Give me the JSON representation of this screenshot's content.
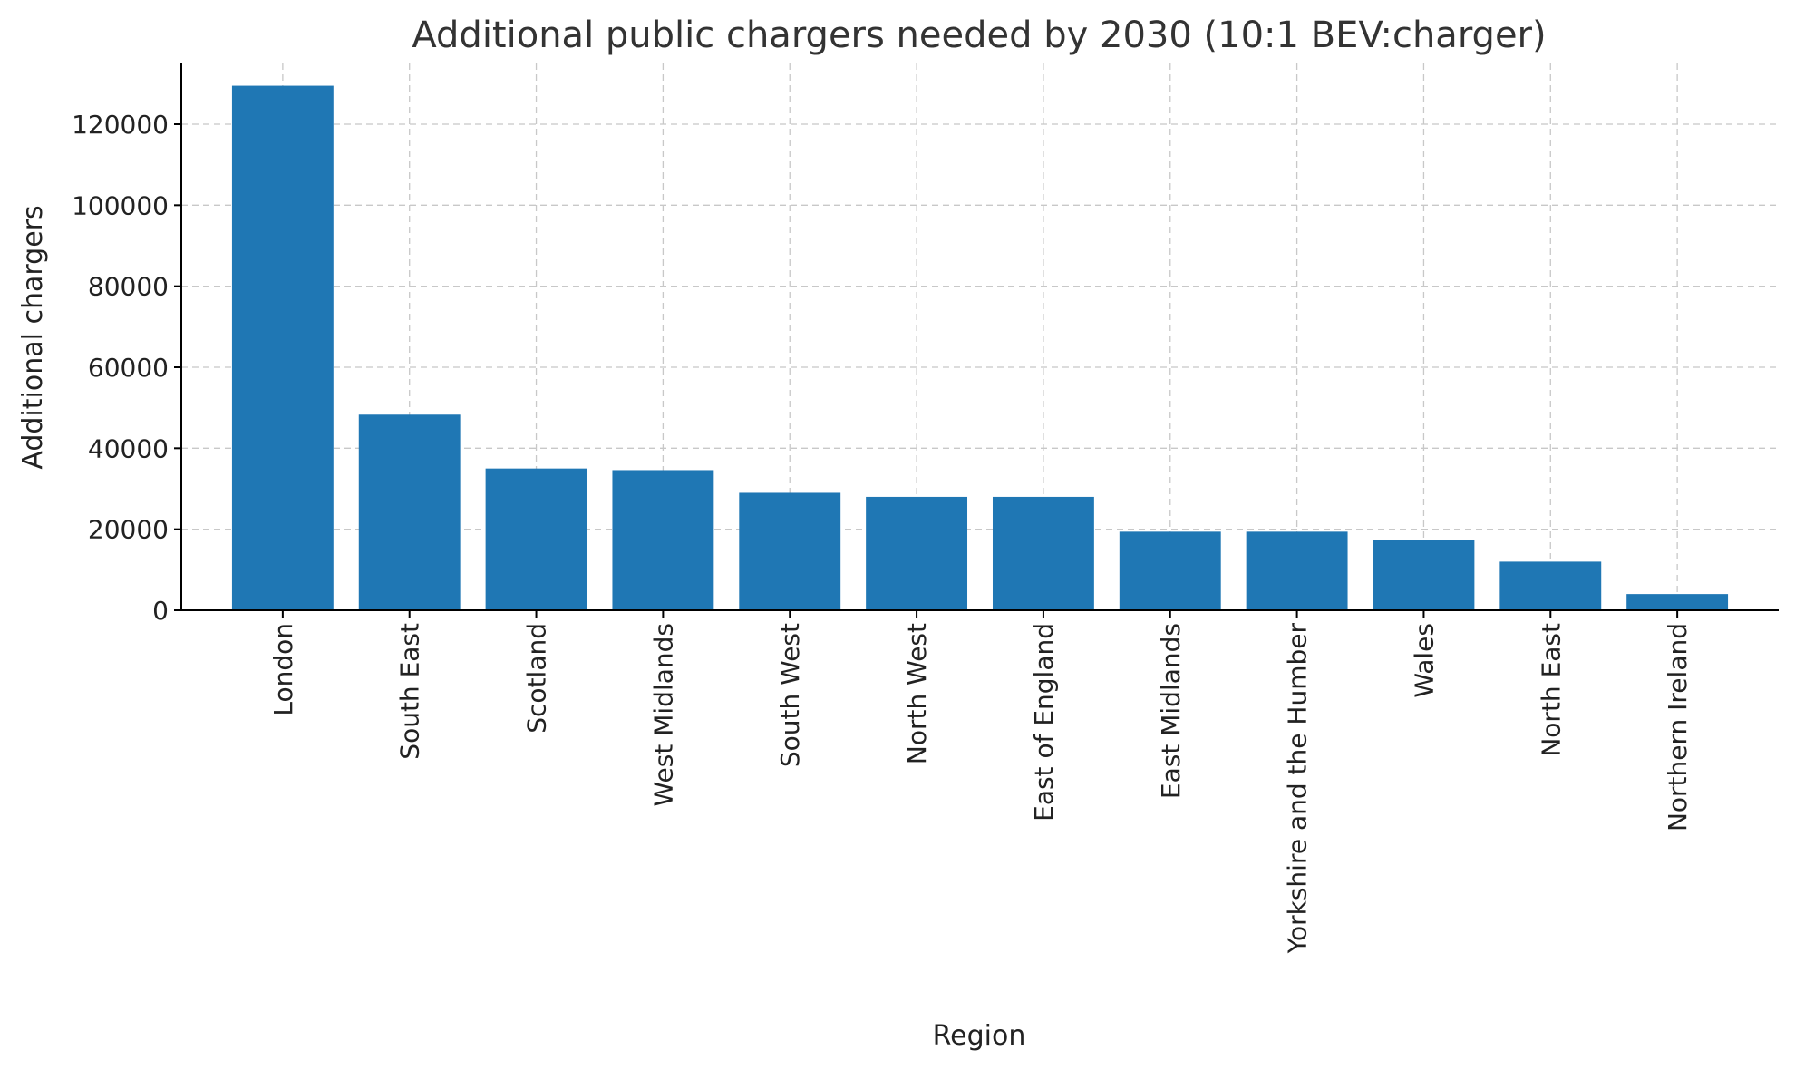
{
  "chart_data": {
    "type": "bar",
    "title": "Additional public chargers needed by 2030 (10:1 BEV:charger)",
    "xlabel": "Region",
    "ylabel": "Additional chargers",
    "categories": [
      "London",
      "South East",
      "Scotland",
      "West Midlands",
      "South West",
      "North West",
      "East of England",
      "East Midlands",
      "Yorkshire and the Humber",
      "Wales",
      "North East",
      "Northern Ireland"
    ],
    "values": [
      129500,
      48300,
      35000,
      34600,
      29000,
      28000,
      28000,
      19400,
      19400,
      17400,
      12000,
      4000
    ],
    "ylim": [
      0,
      135000
    ],
    "yticks": [
      0,
      20000,
      40000,
      60000,
      80000,
      100000,
      120000
    ],
    "grid": true,
    "colors": {
      "bar": "#1f77b4"
    }
  }
}
